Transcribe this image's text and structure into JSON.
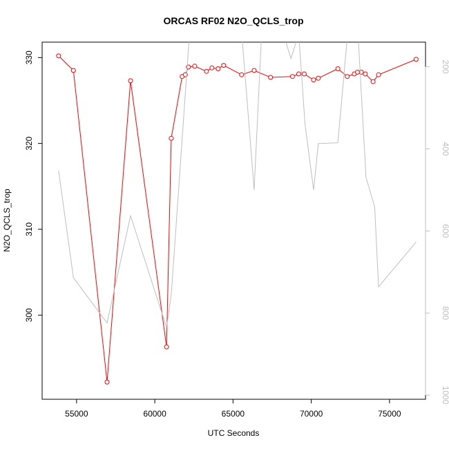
{
  "chart_data": {
    "type": "line",
    "title": "ORCAS RF02 N2O_QCLS_trop",
    "xlabel": "UTC Seconds",
    "ylabel": "N2O_QCLS_trop",
    "xlim": [
      52800,
      77300
    ],
    "ylim": [
      290.2,
      331.8
    ],
    "x_ticks": [
      {
        "value": 55000,
        "label": "55000"
      },
      {
        "value": 60000,
        "label": "60000"
      },
      {
        "value": 65000,
        "label": "65000"
      },
      {
        "value": 70000,
        "label": "70000"
      },
      {
        "value": 75000,
        "label": "75000"
      }
    ],
    "y_ticks": [
      {
        "value": 300,
        "label": "300"
      },
      {
        "value": 310,
        "label": "310"
      },
      {
        "value": 320,
        "label": "320"
      },
      {
        "value": 330,
        "label": "330"
      }
    ],
    "y2_inverted": true,
    "y2lim": [
      1010,
      140
    ],
    "y2_ticks": [
      {
        "value": 200,
        "label": "200"
      },
      {
        "value": 400,
        "label": "400"
      },
      {
        "value": 600,
        "label": "600"
      },
      {
        "value": 800,
        "label": "800"
      },
      {
        "value": 1000,
        "label": "1000"
      }
    ],
    "grid": false,
    "legend": "none",
    "series": [
      {
        "axis": "left",
        "color": "#ff0000",
        "marker": "open-circle",
        "x": [
          53850,
          54800,
          56950,
          58450,
          60750,
          61050,
          61750,
          61950,
          62150,
          62550,
          63300,
          63650,
          64050,
          64400,
          65550,
          66350,
          67400,
          68800,
          69200,
          69550,
          70150,
          70450,
          71700,
          72300,
          72750,
          72950,
          73200,
          73450,
          73950,
          74300,
          76700
        ],
        "values": [
          330.2,
          328.5,
          292.2,
          327.3,
          296.3,
          320.6,
          327.8,
          328.0,
          328.9,
          329.0,
          328.4,
          328.8,
          328.7,
          329.1,
          328.0,
          328.5,
          327.7,
          327.8,
          328.1,
          328.1,
          327.4,
          327.6,
          328.7,
          327.8,
          328.1,
          328.3,
          328.3,
          328.1,
          327.2,
          328.0,
          329.8
        ]
      },
      {
        "axis": "right",
        "color": "#bebebe",
        "marker": "none",
        "x": [
          53850,
          54800,
          56950,
          58450,
          60750,
          61050,
          62200,
          64400,
          64550,
          65000,
          65600,
          66350,
          66800,
          67400,
          68300,
          68700,
          69200,
          69600,
          70150,
          70450,
          71700,
          72300,
          72700,
          73000,
          73500,
          74050,
          74300,
          76700
        ],
        "values": [
          453,
          714,
          824,
          563,
          835,
          756,
          130,
          135,
          130,
          130,
          140,
          500,
          140,
          125,
          130,
          180,
          120,
          340,
          500,
          387,
          385,
          130,
          130,
          130,
          470,
          541,
          736,
          627
        ]
      }
    ]
  }
}
